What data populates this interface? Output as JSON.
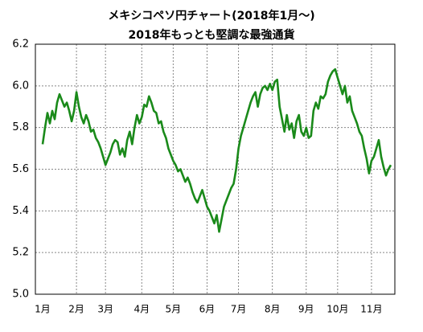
{
  "chart_data": {
    "type": "line",
    "title": "メキシコペソ円チャート(2018年1月～)",
    "subtitle": "2018年もっとも堅調な最強通貨",
    "color": "#1a8a1a",
    "grid": true,
    "ylim": [
      5.0,
      6.2
    ],
    "yticks": [
      {
        "value": 5.0,
        "label": "5.0"
      },
      5.2,
      5.4,
      5.6,
      5.8,
      {
        "value": 6.0,
        "label": "6.0"
      },
      6.2
    ],
    "categories": [
      "1月",
      null,
      null,
      null,
      null,
      null,
      null,
      null,
      null,
      null,
      null,
      null,
      null,
      null,
      "2月",
      null,
      null,
      null,
      null,
      null,
      null,
      null,
      null,
      null,
      null,
      null,
      "3月",
      null,
      null,
      null,
      null,
      null,
      null,
      null,
      null,
      null,
      null,
      null,
      null,
      null,
      null,
      "4月",
      null,
      null,
      null,
      null,
      null,
      null,
      null,
      null,
      null,
      null,
      null,
      null,
      "5月",
      null,
      null,
      null,
      null,
      null,
      null,
      null,
      null,
      null,
      null,
      null,
      null,
      null,
      "6月",
      null,
      null,
      null,
      null,
      null,
      null,
      null,
      null,
      null,
      null,
      null,
      null,
      "7月",
      null,
      null,
      null,
      null,
      null,
      null,
      null,
      null,
      null,
      null,
      null,
      null,
      null,
      "8月",
      null,
      null,
      null,
      null,
      null,
      null,
      null,
      null,
      null,
      null,
      null,
      null,
      null,
      "9月",
      null,
      null,
      null,
      null,
      null,
      null,
      null,
      null,
      null,
      null,
      null,
      null,
      "10月",
      null,
      null,
      null,
      null,
      null,
      null,
      null,
      null,
      null,
      null,
      null,
      null,
      null,
      "11月",
      null,
      null,
      null,
      null,
      null,
      null,
      null,
      null
    ],
    "values": [
      5.72,
      5.8,
      5.87,
      5.82,
      5.88,
      5.84,
      5.92,
      5.96,
      5.93,
      5.9,
      5.92,
      5.88,
      5.83,
      5.88,
      5.97,
      5.9,
      5.85,
      5.82,
      5.86,
      5.83,
      5.78,
      5.79,
      5.75,
      5.73,
      5.7,
      5.66,
      5.62,
      5.65,
      5.68,
      5.72,
      5.74,
      5.73,
      5.67,
      5.7,
      5.66,
      5.74,
      5.78,
      5.72,
      5.8,
      5.86,
      5.82,
      5.85,
      5.91,
      5.9,
      5.95,
      5.92,
      5.88,
      5.87,
      5.82,
      5.83,
      5.78,
      5.75,
      5.7,
      5.67,
      5.64,
      5.62,
      5.59,
      5.6,
      5.57,
      5.54,
      5.56,
      5.53,
      5.49,
      5.46,
      5.44,
      5.47,
      5.5,
      5.46,
      5.42,
      5.4,
      5.37,
      5.34,
      5.38,
      5.3,
      5.36,
      5.42,
      5.45,
      5.48,
      5.51,
      5.53,
      5.6,
      5.7,
      5.76,
      5.8,
      5.84,
      5.88,
      5.92,
      5.95,
      5.97,
      5.9,
      5.96,
      5.99,
      6.0,
      5.98,
      6.01,
      5.98,
      6.02,
      6.03,
      5.9,
      5.84,
      5.78,
      5.86,
      5.79,
      5.82,
      5.75,
      5.83,
      5.86,
      5.78,
      5.76,
      5.8,
      5.75,
      5.76,
      5.88,
      5.92,
      5.89,
      5.95,
      5.94,
      5.96,
      6.02,
      6.05,
      6.07,
      6.08,
      6.04,
      6.0,
      5.96,
      6.0,
      5.92,
      5.95,
      5.88,
      5.85,
      5.82,
      5.78,
      5.76,
      5.7,
      5.65,
      5.58,
      5.64,
      5.66,
      5.7,
      5.74,
      5.66,
      5.61,
      5.57,
      5.6,
      5.62
    ]
  }
}
